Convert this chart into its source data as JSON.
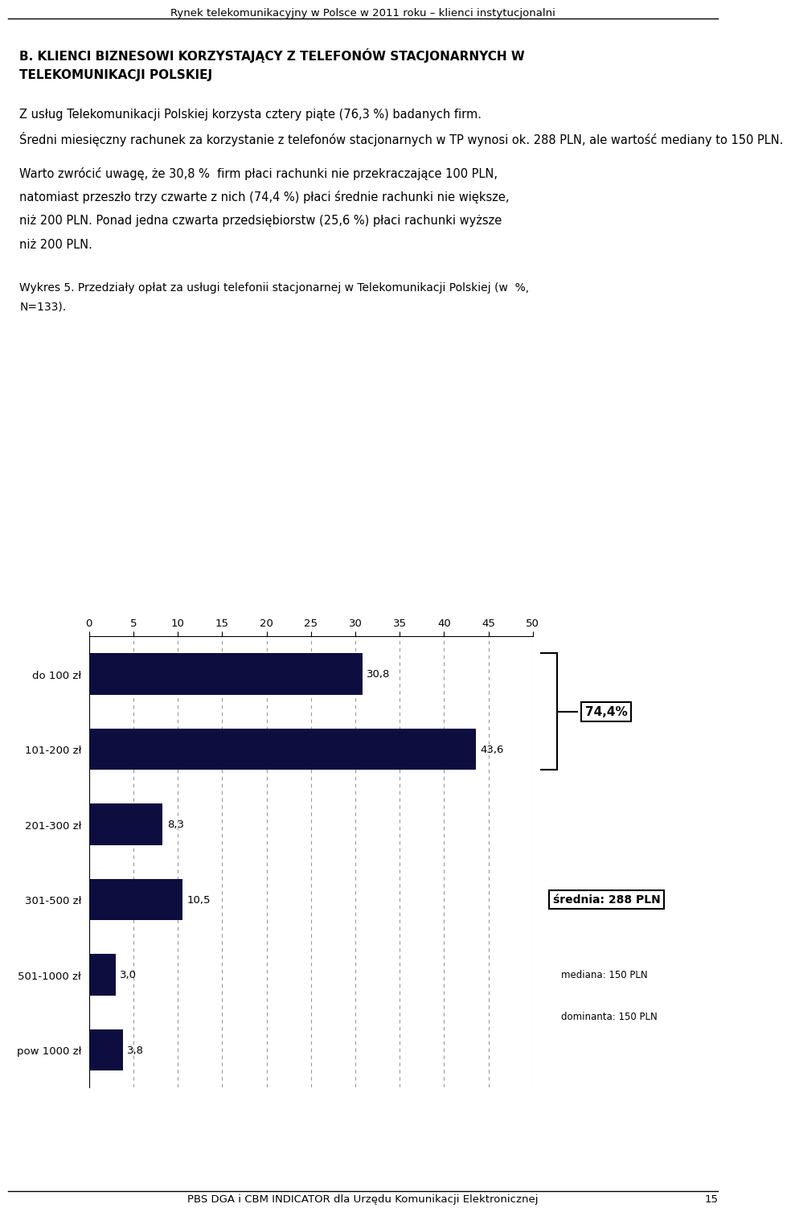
{
  "header": "Rynek telekomunikacyjny w Polsce w 2011 roku – klienci instytucjonalni",
  "footer": "PBS DGA i CBM INDICATOR dla Urzędu Komunikacji Elektronicznej",
  "page_number": "15",
  "section_title_line1": "B. KLIENCI BIZNESOWI KORZYSTAJĄCY Z TELEFONÓW STACJONARNYCH W",
  "section_title_line2": "TELEKOMUNIKACJI POLSKIEJ",
  "p1_line1": "Z usług Telekomunikacji Polskiej korzysta cztery piąte (76,3 %) badanych firm.",
  "p1_line2": "Średni miesięczny rachunek za korzystanie z telefonów stacjonarnych w TP wynosi ok. 288 PLN, ale wartość mediany to 150 PLN.",
  "p2_line1": "Warto zwrócić uwagę, że 30,8 %  firm płaci rachunki nie przekraczające 100 PLN,",
  "p2_line2": "natomiast przeszło trzy czwarte z nich (74,4 %) płaci średnie rachunki nie większe,",
  "p2_line3": "niż 200 PLN. Ponad jedna czwarta przedsiębiorstw (25,6 %) płaci rachunki wyższe",
  "p2_line4": "niż 200 PLN.",
  "caption_line1": "Wykres 5. Przedziały opłat za usługi telefonii stacjonarnej w Telekomunikacji Polskiej (w  %,",
  "caption_line2": "N=133).",
  "categories": [
    "do 100 zł",
    "101-200 zł",
    "201-300 zł",
    "301-500 zł",
    "501-1000 zł",
    "pow 1000 zł"
  ],
  "values": [
    30.8,
    43.6,
    8.3,
    10.5,
    3.0,
    3.8
  ],
  "bar_color": "#0d0d40",
  "xlim": [
    0,
    50
  ],
  "xticks": [
    0,
    5,
    10,
    15,
    20,
    25,
    30,
    35,
    40,
    45,
    50
  ],
  "annotation_744": "74,4%",
  "annotation_srednia": "średnia: 288 PLN",
  "annotation_mediana": "mediana: 150 PLN",
  "annotation_dominanta": "dominanta: 150 PLN",
  "grid_color": "#999999",
  "background_color": "#ffffff",
  "text_color": "#000000"
}
